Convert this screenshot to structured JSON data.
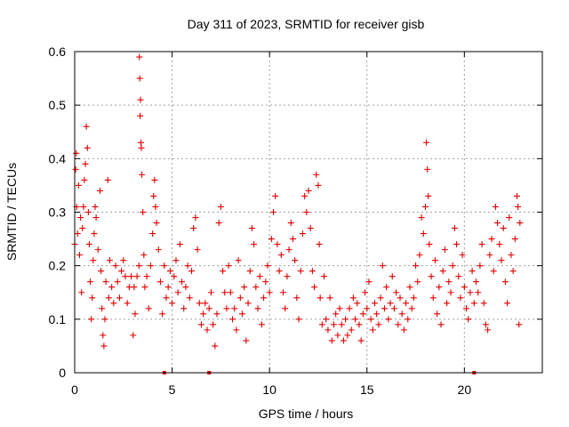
{
  "chart_data": {
    "type": "scatter",
    "title": "Day 311 of 2023, SRMTID for receiver gisb",
    "xlabel": "GPS time / hours",
    "ylabel": "SRMTID / TECUs",
    "xlim": [
      0,
      24
    ],
    "ylim": [
      0,
      0.6
    ],
    "x_ticks": [
      0,
      5,
      10,
      15,
      20
    ],
    "x_tick_labels": [
      "0",
      "5",
      "10",
      "15",
      "20"
    ],
    "y_ticks": [
      0,
      0.1,
      0.2,
      0.3,
      0.4,
      0.5,
      0.6
    ],
    "y_tick_labels": [
      "0",
      "0.1",
      "0.2",
      "0.3",
      "0.4",
      "0.5",
      "0.6"
    ],
    "grid": true,
    "marker": "+",
    "series_color": "#e00000",
    "series": [
      {
        "name": "SRMTID",
        "points": [
          [
            0.0,
            0.24
          ],
          [
            0.05,
            0.38
          ],
          [
            0.08,
            0.41
          ],
          [
            0.1,
            0.31
          ],
          [
            0.15,
            0.26
          ],
          [
            0.2,
            0.35
          ],
          [
            0.25,
            0.22
          ],
          [
            0.3,
            0.29
          ],
          [
            0.35,
            0.15
          ],
          [
            0.4,
            0.27
          ],
          [
            0.45,
            0.31
          ],
          [
            0.5,
            0.36
          ],
          [
            0.55,
            0.39
          ],
          [
            0.6,
            0.46
          ],
          [
            0.65,
            0.42
          ],
          [
            0.7,
            0.3
          ],
          [
            0.75,
            0.24
          ],
          [
            0.8,
            0.17
          ],
          [
            0.85,
            0.1
          ],
          [
            0.9,
            0.14
          ],
          [
            0.95,
            0.21
          ],
          [
            1.0,
            0.26
          ],
          [
            1.05,
            0.31
          ],
          [
            1.1,
            0.29
          ],
          [
            1.2,
            0.23
          ],
          [
            1.3,
            0.34
          ],
          [
            1.35,
            0.19
          ],
          [
            1.4,
            0.12
          ],
          [
            1.45,
            0.07
          ],
          [
            1.5,
            0.05
          ],
          [
            1.55,
            0.1
          ],
          [
            1.6,
            0.17
          ],
          [
            1.7,
            0.36
          ],
          [
            1.75,
            0.14
          ],
          [
            1.8,
            0.21
          ],
          [
            1.9,
            0.16
          ],
          [
            2.0,
            0.13
          ],
          [
            2.1,
            0.2
          ],
          [
            2.2,
            0.17
          ],
          [
            2.3,
            0.14
          ],
          [
            2.4,
            0.19
          ],
          [
            2.5,
            0.21
          ],
          [
            2.6,
            0.18
          ],
          [
            2.7,
            0.13
          ],
          [
            2.8,
            0.16
          ],
          [
            2.9,
            0.18
          ],
          [
            3.0,
            0.07
          ],
          [
            3.05,
            0.16
          ],
          [
            3.1,
            0.11
          ],
          [
            3.2,
            0.18
          ],
          [
            3.3,
            0.2
          ],
          [
            3.32,
            0.59
          ],
          [
            3.34,
            0.55
          ],
          [
            3.36,
            0.48
          ],
          [
            3.38,
            0.51
          ],
          [
            3.4,
            0.43
          ],
          [
            3.42,
            0.42
          ],
          [
            3.45,
            0.37
          ],
          [
            3.5,
            0.3
          ],
          [
            3.55,
            0.22
          ],
          [
            3.6,
            0.16
          ],
          [
            3.7,
            0.18
          ],
          [
            3.8,
            0.12
          ],
          [
            3.9,
            0.2
          ],
          [
            4.0,
            0.26
          ],
          [
            4.05,
            0.33
          ],
          [
            4.1,
            0.36
          ],
          [
            4.15,
            0.31
          ],
          [
            4.2,
            0.28
          ],
          [
            4.3,
            0.23
          ],
          [
            4.4,
            0.17
          ],
          [
            4.5,
            0.11
          ],
          [
            4.6,
            0.2
          ],
          [
            4.7,
            0.14
          ],
          [
            4.8,
            0.16
          ],
          [
            4.9,
            0.19
          ],
          [
            5.0,
            0.13
          ],
          [
            5.1,
            0.18
          ],
          [
            5.2,
            0.21
          ],
          [
            5.3,
            0.15
          ],
          [
            5.4,
            0.24
          ],
          [
            5.5,
            0.17
          ],
          [
            5.6,
            0.12
          ],
          [
            5.7,
            0.16
          ],
          [
            5.8,
            0.2
          ],
          [
            5.9,
            0.14
          ],
          [
            6.0,
            0.19
          ],
          [
            6.1,
            0.27
          ],
          [
            6.2,
            0.29
          ],
          [
            6.3,
            0.23
          ],
          [
            6.4,
            0.13
          ],
          [
            6.5,
            0.09
          ],
          [
            6.6,
            0.11
          ],
          [
            6.7,
            0.13
          ],
          [
            6.8,
            0.08
          ],
          [
            6.9,
            0.12
          ],
          [
            7.0,
            0.15
          ],
          [
            7.1,
            0.09
          ],
          [
            7.2,
            0.05
          ],
          [
            7.3,
            0.11
          ],
          [
            7.4,
            0.28
          ],
          [
            7.5,
            0.31
          ],
          [
            7.6,
            0.19
          ],
          [
            7.7,
            0.15
          ],
          [
            7.8,
            0.12
          ],
          [
            7.9,
            0.2
          ],
          [
            8.0,
            0.15
          ],
          [
            8.1,
            0.1
          ],
          [
            8.2,
            0.12
          ],
          [
            8.3,
            0.08
          ],
          [
            8.4,
            0.21
          ],
          [
            8.5,
            0.14
          ],
          [
            8.6,
            0.11
          ],
          [
            8.7,
            0.16
          ],
          [
            8.8,
            0.06
          ],
          [
            8.9,
            0.13
          ],
          [
            9.0,
            0.19
          ],
          [
            9.1,
            0.27
          ],
          [
            9.2,
            0.24
          ],
          [
            9.3,
            0.16
          ],
          [
            9.4,
            0.12
          ],
          [
            9.5,
            0.18
          ],
          [
            9.6,
            0.09
          ],
          [
            9.7,
            0.14
          ],
          [
            9.8,
            0.17
          ],
          [
            9.9,
            0.2
          ],
          [
            10.0,
            0.15
          ],
          [
            10.1,
            0.25
          ],
          [
            10.2,
            0.3
          ],
          [
            10.3,
            0.33
          ],
          [
            10.4,
            0.24
          ],
          [
            10.5,
            0.19
          ],
          [
            10.6,
            0.22
          ],
          [
            10.7,
            0.15
          ],
          [
            10.8,
            0.12
          ],
          [
            10.9,
            0.18
          ],
          [
            11.0,
            0.23
          ],
          [
            11.1,
            0.28
          ],
          [
            11.2,
            0.25
          ],
          [
            11.3,
            0.21
          ],
          [
            11.4,
            0.14
          ],
          [
            11.5,
            0.1
          ],
          [
            11.6,
            0.19
          ],
          [
            11.7,
            0.26
          ],
          [
            11.8,
            0.33
          ],
          [
            11.9,
            0.3
          ],
          [
            12.0,
            0.34
          ],
          [
            12.1,
            0.27
          ],
          [
            12.2,
            0.19
          ],
          [
            12.3,
            0.16
          ],
          [
            12.4,
            0.37
          ],
          [
            12.5,
            0.35
          ],
          [
            12.55,
            0.24
          ],
          [
            12.6,
            0.14
          ],
          [
            12.7,
            0.09
          ],
          [
            12.8,
            0.18
          ],
          [
            12.9,
            0.1
          ],
          [
            13.0,
            0.08
          ],
          [
            13.1,
            0.14
          ],
          [
            13.2,
            0.06
          ],
          [
            13.3,
            0.09
          ],
          [
            13.4,
            0.11
          ],
          [
            13.5,
            0.07
          ],
          [
            13.6,
            0.12
          ],
          [
            13.7,
            0.09
          ],
          [
            13.8,
            0.06
          ],
          [
            13.9,
            0.1
          ],
          [
            14.0,
            0.07
          ],
          [
            14.1,
            0.12
          ],
          [
            14.2,
            0.08
          ],
          [
            14.3,
            0.14
          ],
          [
            14.4,
            0.1
          ],
          [
            14.5,
            0.13
          ],
          [
            14.6,
            0.09
          ],
          [
            14.7,
            0.06
          ],
          [
            14.8,
            0.11
          ],
          [
            14.9,
            0.15
          ],
          [
            15.0,
            0.12
          ],
          [
            15.1,
            0.17
          ],
          [
            15.2,
            0.1
          ],
          [
            15.3,
            0.08
          ],
          [
            15.4,
            0.13
          ],
          [
            15.5,
            0.11
          ],
          [
            15.6,
            0.09
          ],
          [
            15.7,
            0.14
          ],
          [
            15.8,
            0.2
          ],
          [
            15.9,
            0.12
          ],
          [
            16.0,
            0.16
          ],
          [
            16.1,
            0.1
          ],
          [
            16.2,
            0.13
          ],
          [
            16.3,
            0.18
          ],
          [
            16.4,
            0.12
          ],
          [
            16.5,
            0.15
          ],
          [
            16.6,
            0.09
          ],
          [
            16.7,
            0.14
          ],
          [
            16.8,
            0.11
          ],
          [
            16.9,
            0.08
          ],
          [
            17.0,
            0.13
          ],
          [
            17.1,
            0.1
          ],
          [
            17.2,
            0.16
          ],
          [
            17.3,
            0.12
          ],
          [
            17.4,
            0.14
          ],
          [
            17.5,
            0.2
          ],
          [
            17.6,
            0.17
          ],
          [
            17.7,
            0.22
          ],
          [
            17.8,
            0.29
          ],
          [
            17.9,
            0.26
          ],
          [
            18.0,
            0.31
          ],
          [
            18.05,
            0.43
          ],
          [
            18.1,
            0.38
          ],
          [
            18.15,
            0.33
          ],
          [
            18.2,
            0.24
          ],
          [
            18.3,
            0.18
          ],
          [
            18.4,
            0.14
          ],
          [
            18.5,
            0.21
          ],
          [
            18.6,
            0.11
          ],
          [
            18.7,
            0.16
          ],
          [
            18.8,
            0.09
          ],
          [
            18.9,
            0.19
          ],
          [
            19.0,
            0.23
          ],
          [
            19.1,
            0.13
          ],
          [
            19.2,
            0.17
          ],
          [
            19.3,
            0.15
          ],
          [
            19.4,
            0.2
          ],
          [
            19.5,
            0.27
          ],
          [
            19.6,
            0.24
          ],
          [
            19.7,
            0.18
          ],
          [
            19.8,
            0.14
          ],
          [
            19.9,
            0.22
          ],
          [
            20.0,
            0.16
          ],
          [
            20.1,
            0.12
          ],
          [
            20.2,
            0.1
          ],
          [
            20.3,
            0.15
          ],
          [
            20.4,
            0.19
          ],
          [
            20.5,
            0.13
          ],
          [
            20.6,
            0.17
          ],
          [
            20.7,
            0.15
          ],
          [
            20.8,
            0.2
          ],
          [
            20.9,
            0.24
          ],
          [
            21.0,
            0.13
          ],
          [
            21.1,
            0.09
          ],
          [
            21.2,
            0.08
          ],
          [
            21.3,
            0.22
          ],
          [
            21.4,
            0.25
          ],
          [
            21.5,
            0.19
          ],
          [
            21.6,
            0.31
          ],
          [
            21.7,
            0.28
          ],
          [
            21.8,
            0.24
          ],
          [
            21.9,
            0.21
          ],
          [
            22.0,
            0.27
          ],
          [
            22.1,
            0.17
          ],
          [
            22.2,
            0.13
          ],
          [
            22.3,
            0.29
          ],
          [
            22.4,
            0.22
          ],
          [
            22.5,
            0.19
          ],
          [
            22.6,
            0.25
          ],
          [
            22.7,
            0.33
          ],
          [
            22.75,
            0.31
          ],
          [
            22.8,
            0.09
          ],
          [
            22.85,
            0.28
          ]
        ]
      }
    ],
    "gap_markers_x": [
      4.6,
      6.9,
      20.5
    ]
  }
}
